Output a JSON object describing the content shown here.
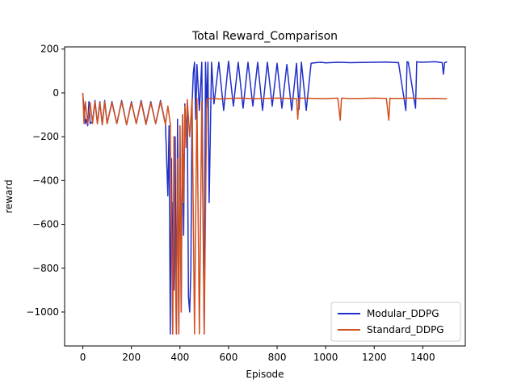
{
  "chart_data": {
    "type": "line",
    "title": "Total Reward_Comparison",
    "xlabel": "Episode",
    "ylabel": "reward",
    "xlim": [
      -75,
      1575
    ],
    "ylim": [
      -1155,
      210
    ],
    "xticks": [
      0,
      200,
      400,
      600,
      800,
      1000,
      1200,
      1400
    ],
    "xtick_labels": [
      "0",
      "200",
      "400",
      "600",
      "800",
      "1000",
      "1200",
      "1400"
    ],
    "yticks": [
      200,
      0,
      -200,
      -400,
      -600,
      -800,
      -1000
    ],
    "ytick_labels": [
      "200",
      "0",
      "−200",
      "−400",
      "−600",
      "−800",
      "−1000"
    ],
    "grid": false,
    "legend_position": "lower-right",
    "series": [
      {
        "name": "Modular_DDPG",
        "color": "#1f2fc8",
        "x": [
          0,
          10,
          15,
          20,
          25,
          30,
          40,
          50,
          60,
          70,
          80,
          90,
          100,
          120,
          140,
          160,
          180,
          200,
          220,
          240,
          260,
          280,
          300,
          320,
          340,
          350,
          355,
          360,
          365,
          370,
          372,
          375,
          380,
          385,
          390,
          395,
          400,
          405,
          410,
          415,
          420,
          425,
          430,
          435,
          440,
          445,
          450,
          455,
          460,
          465,
          470,
          480,
          490,
          500,
          505,
          510,
          515,
          520,
          530,
          540,
          560,
          580,
          600,
          620,
          640,
          660,
          680,
          700,
          720,
          740,
          760,
          780,
          800,
          820,
          840,
          860,
          880,
          890,
          900,
          920,
          940,
          960,
          980,
          1000,
          1050,
          1100,
          1150,
          1200,
          1250,
          1300,
          1330,
          1335,
          1340,
          1370,
          1375,
          1380,
          1400,
          1450,
          1480,
          1485,
          1490,
          1500
        ],
        "y": [
          -5,
          -140,
          -120,
          -150,
          -40,
          -140,
          -130,
          -35,
          -140,
          -40,
          -145,
          -35,
          -140,
          -40,
          -140,
          -35,
          -145,
          -40,
          -140,
          -35,
          -140,
          -40,
          -140,
          -35,
          -140,
          -470,
          -150,
          -1100,
          -300,
          -1100,
          -500,
          -900,
          -200,
          -1100,
          -120,
          -1100,
          -150,
          -1000,
          -100,
          -650,
          -50,
          -200,
          -60,
          -930,
          -1000,
          -800,
          -50,
          90,
          140,
          -120,
          130,
          -80,
          140,
          -1100,
          140,
          -70,
          140,
          -500,
          140,
          -50,
          140,
          -80,
          145,
          -60,
          140,
          -70,
          140,
          -60,
          140,
          -80,
          140,
          -60,
          135,
          -70,
          130,
          -80,
          135,
          -75,
          140,
          -80,
          135,
          138,
          140,
          137,
          140,
          138,
          139,
          140,
          141,
          138,
          -80,
          142,
          140,
          -70,
          143,
          141,
          140,
          142,
          138,
          85,
          138,
          142
        ]
      },
      {
        "name": "Standard_DDPG",
        "color": "#d2501e",
        "x": [
          0,
          5,
          10,
          20,
          30,
          40,
          50,
          60,
          70,
          80,
          90,
          100,
          120,
          140,
          160,
          180,
          200,
          220,
          240,
          260,
          280,
          300,
          320,
          340,
          350,
          360,
          365,
          370,
          375,
          380,
          385,
          390,
          395,
          400,
          405,
          410,
          415,
          420,
          425,
          430,
          440,
          450,
          460,
          470,
          480,
          490,
          500,
          510,
          520,
          540,
          560,
          600,
          650,
          700,
          750,
          800,
          850,
          880,
          885,
          890,
          900,
          950,
          1000,
          1050,
          1060,
          1065,
          1070,
          1100,
          1150,
          1200,
          1250,
          1260,
          1265,
          1270,
          1300,
          1350,
          1400,
          1450,
          1500
        ],
        "y": [
          0,
          -140,
          -40,
          -140,
          -45,
          -140,
          -40,
          -140,
          -45,
          -145,
          -40,
          -140,
          -45,
          -140,
          -40,
          -145,
          -45,
          -140,
          -40,
          -145,
          -45,
          -140,
          -40,
          -145,
          -60,
          -140,
          -600,
          -1100,
          -200,
          -750,
          -1100,
          -300,
          -1100,
          -150,
          -1000,
          -100,
          -500,
          -60,
          -250,
          -30,
          -200,
          -25,
          -1100,
          -25,
          -1100,
          -40,
          -1100,
          -30,
          -25,
          -25,
          -28,
          -25,
          -24,
          -26,
          -25,
          -24,
          -25,
          -26,
          -120,
          -25,
          -24,
          -25,
          -26,
          -24,
          -125,
          -25,
          -24,
          -26,
          -25,
          -24,
          -25,
          -125,
          -24,
          -25,
          -25,
          -24,
          -26,
          -25,
          -27
        ]
      }
    ]
  }
}
